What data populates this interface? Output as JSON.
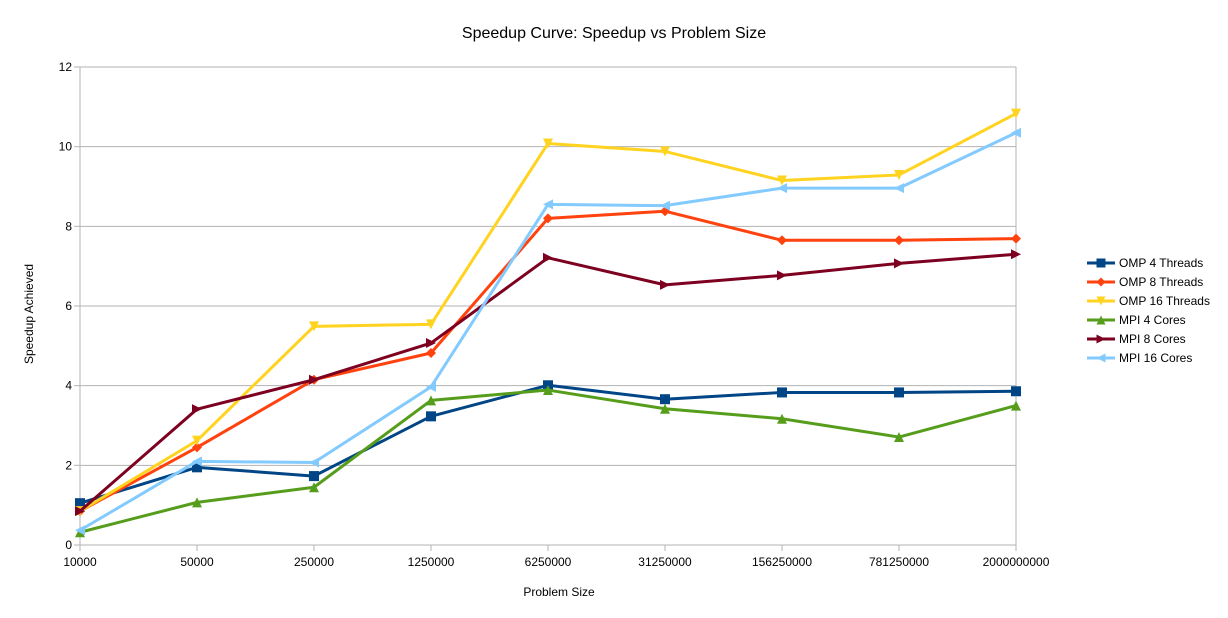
{
  "chart_data": {
    "type": "line",
    "title": "Speedup Curve: Speedup vs Problem Size",
    "xlabel": "Problem Size",
    "ylabel": "Speedup Achieved",
    "categories": [
      "10000",
      "50000",
      "250000",
      "1250000",
      "6250000",
      "31250000",
      "156250000",
      "781250000",
      "2000000000"
    ],
    "ylim": [
      0,
      12
    ],
    "yticks": [
      "0",
      "2",
      "4",
      "6",
      "8",
      "10",
      "12"
    ],
    "grid": "horizontal",
    "legend_position": "right",
    "series": [
      {
        "name": "OMP 4 Threads",
        "color": "#004586",
        "marker": "square",
        "values": [
          1.05,
          1.95,
          1.73,
          3.23,
          4.01,
          3.66,
          3.83,
          3.83,
          3.86
        ]
      },
      {
        "name": "OMP 8 Threads",
        "color": "#ff420e",
        "marker": "diamond",
        "values": [
          0.85,
          2.45,
          4.15,
          4.82,
          8.2,
          8.38,
          7.65,
          7.65,
          7.69
        ]
      },
      {
        "name": "OMP 16 Threads",
        "color": "#ffd320",
        "marker": "triangle-down",
        "values": [
          0.85,
          2.62,
          5.49,
          5.54,
          10.08,
          9.88,
          9.15,
          9.29,
          10.83
        ]
      },
      {
        "name": "MPI 4 Cores",
        "color": "#579d1c",
        "marker": "triangle-up",
        "values": [
          0.32,
          1.07,
          1.45,
          3.63,
          3.89,
          3.42,
          3.17,
          2.71,
          3.5
        ]
      },
      {
        "name": "MPI 8 Cores",
        "color": "#7e0021",
        "marker": "triangle-right",
        "values": [
          0.85,
          3.41,
          4.15,
          5.07,
          7.21,
          6.53,
          6.77,
          7.07,
          7.3
        ]
      },
      {
        "name": "MPI 16 Cores",
        "color": "#83caff",
        "marker": "triangle-left",
        "values": [
          0.37,
          2.1,
          2.07,
          3.97,
          8.55,
          8.52,
          8.96,
          8.96,
          10.35
        ]
      }
    ]
  }
}
